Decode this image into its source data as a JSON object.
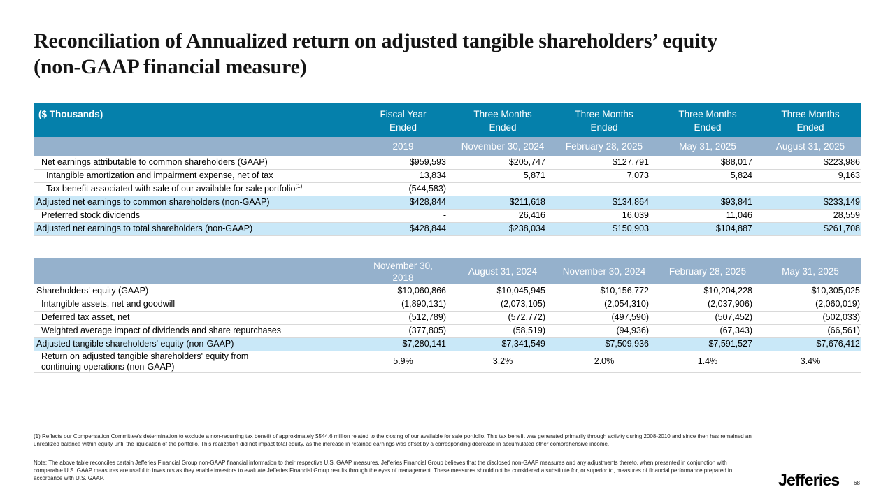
{
  "title": "Reconciliation of Annualized return on adjusted tangible shareholders’ equity\n(non-GAAP financial measure)",
  "colors": {
    "header_teal": "#0580AB",
    "header_band": "#95B1CC",
    "row_highlight": "#C9E8F8"
  },
  "table1": {
    "units_label": "($ Thousands)",
    "period_headers": [
      "Fiscal Year\nEnded",
      "Three Months\nEnded",
      "Three Months\nEnded",
      "Three Months\nEnded",
      "Three Months\nEnded"
    ],
    "date_headers": [
      "2019",
      "November 30, 2024",
      "February 28, 2025",
      "May 31, 2025",
      "August 31, 2025"
    ],
    "rows": [
      {
        "label": "Net earnings attributable to common shareholders (GAAP)",
        "indent": 1,
        "highlight": false,
        "values": [
          "$959,593",
          "$205,747",
          "$127,791",
          "$88,017",
          "$223,986"
        ]
      },
      {
        "label": "Intangible amortization and impairment expense, net of tax",
        "indent": 2,
        "highlight": false,
        "values": [
          "13,834",
          "5,871",
          "7,073",
          "5,824",
          "9,163"
        ]
      },
      {
        "label": "Tax benefit associated with sale of our available for sale portfolio",
        "sup": "(1)",
        "indent": 2,
        "highlight": false,
        "values": [
          "(544,583)",
          "-",
          "-",
          "-",
          "-"
        ]
      },
      {
        "label": "Adjusted net earnings to common shareholders (non-GAAP)",
        "indent": 0,
        "highlight": true,
        "values": [
          "$428,844",
          "$211,618",
          "$134,864",
          "$93,841",
          "$233,149"
        ]
      },
      {
        "label": "Preferred stock dividends",
        "indent": 1,
        "highlight": false,
        "values": [
          "-",
          "26,416",
          "16,039",
          "11,046",
          "28,559"
        ]
      },
      {
        "label": "Adjusted net earnings to total shareholders (non-GAAP)",
        "indent": 0,
        "highlight": true,
        "values": [
          "$428,844",
          "$238,034",
          "$150,903",
          "$104,887",
          "$261,708"
        ]
      }
    ]
  },
  "table2": {
    "date_headers": [
      "November 30,\n2018",
      "August 31, 2024",
      "November 30, 2024",
      "February 28, 2025",
      "May 31, 2025"
    ],
    "rows": [
      {
        "label": "Shareholders' equity (GAAP)",
        "indent": 0,
        "highlight": false,
        "values": [
          "$10,060,866",
          "$10,045,945",
          "$10,156,772",
          "$10,204,228",
          "$10,305,025"
        ]
      },
      {
        "label": "Intangible assets, net and goodwill",
        "indent": 1,
        "highlight": false,
        "values": [
          "(1,890,131)",
          "(2,073,105)",
          "(2,054,310)",
          "(2,037,906)",
          "(2,060,019)"
        ]
      },
      {
        "label": "Deferred tax asset, net",
        "indent": 1,
        "highlight": false,
        "values": [
          "(512,789)",
          "(572,772)",
          "(497,590)",
          "(507,452)",
          "(502,033)"
        ]
      },
      {
        "label": "Weighted average impact of dividends and share repurchases",
        "indent": 1,
        "highlight": false,
        "values": [
          "(377,805)",
          "(58,519)",
          "(94,936)",
          "(67,343)",
          "(66,561)"
        ]
      },
      {
        "label": "Adjusted tangible shareholders' equity (non-GAAP)",
        "indent": 0,
        "highlight": true,
        "values": [
          "$7,280,141",
          "$7,341,549",
          "$7,509,936",
          "$7,591,527",
          "$7,676,412"
        ]
      },
      {
        "label": "Return on adjusted tangible shareholders' equity from\ncontinuing operations (non-GAAP)",
        "indent": 1,
        "highlight": false,
        "align": "center",
        "values": [
          "5.9%",
          "3.2%",
          "2.0%",
          "1.4%",
          "3.4%"
        ]
      }
    ]
  },
  "footnote": "(1) Reflects our Compensation Committee's determination to exclude a non-recurring tax benefit of approximately $544.6 million related to the closing of our available for sale portfolio. This tax benefit was generated primarily through activity during 2008-2010 and since then has remained an unrealized balance within equity until the liquidation of the portfolio. This realization did not impact total equity, as the increase in retained earnings was offset by a corresponding decrease in accumulated other comprehensive income.",
  "note": "Note: The above table reconciles certain Jefferies Financial Group non-GAAP financial information to their respective U.S. GAAP measures. Jefferies Financial Group believes that the disclosed non-GAAP measures and any adjustments thereto, when presented in conjunction with comparable U.S. GAAP measures are useful to investors as they enable investors to evaluate Jefferies Financial Group results through the eyes of management. These measures should not be considered a substitute for, or superior to, measures of financial performance prepared in accordance with U.S. GAAP.",
  "footer": {
    "logo": "Jefferies",
    "page_number": "68"
  }
}
